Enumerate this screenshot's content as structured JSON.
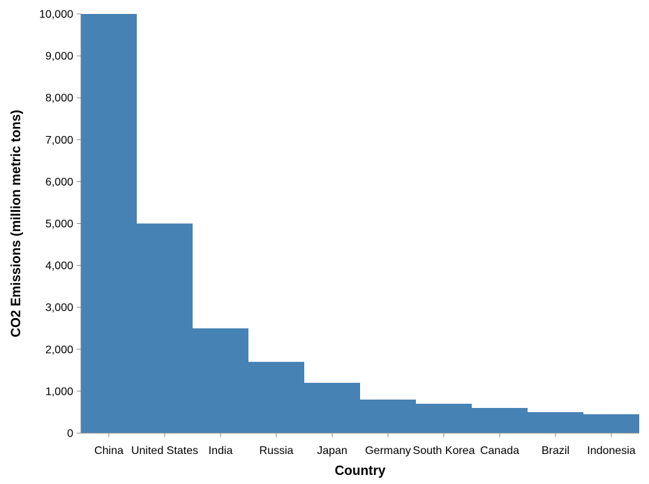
{
  "chart_data": {
    "type": "bar",
    "title": "",
    "xlabel": "Country",
    "ylabel": "CO2 Emissions (million metric tons)",
    "categories": [
      "China",
      "United States",
      "India",
      "Russia",
      "Japan",
      "Germany",
      "South Korea",
      "Canada",
      "Brazil",
      "Indonesia"
    ],
    "values": [
      10000,
      5000,
      2500,
      1700,
      1200,
      800,
      700,
      600,
      500,
      450
    ],
    "ylim": [
      0,
      10000
    ],
    "yticks": [
      0,
      1000,
      2000,
      3000,
      4000,
      5000,
      6000,
      7000,
      8000,
      9000,
      10000
    ],
    "ytick_labels": [
      "0",
      "1,000",
      "2,000",
      "3,000",
      "4,000",
      "5,000",
      "6,000",
      "7,000",
      "8,000",
      "9,000",
      "10,000"
    ],
    "grid": false,
    "legend": "none",
    "bar_color": "#4682b4",
    "axis_color": "#888888"
  }
}
